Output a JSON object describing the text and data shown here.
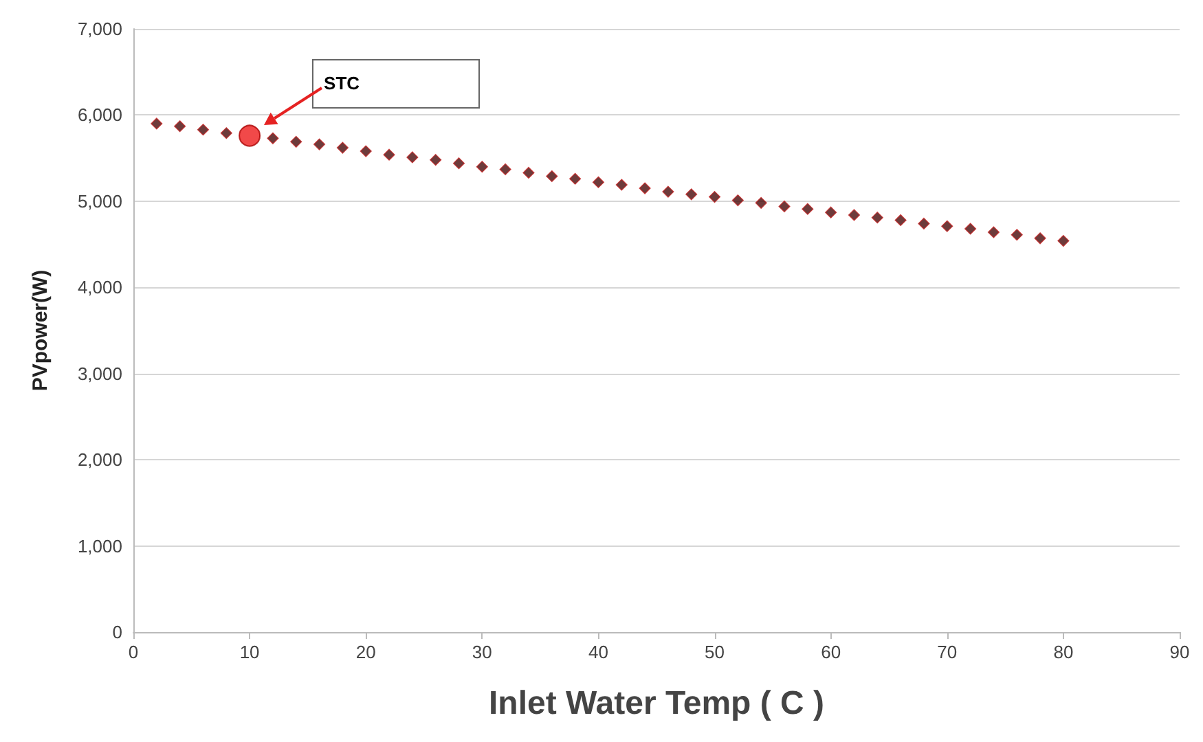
{
  "chart_data": {
    "type": "scatter",
    "xlabel": "Inlet Water Temp ( C )",
    "ylabel": "PVpower(W)",
    "xlim": [
      0,
      90
    ],
    "xticks": [
      0,
      10,
      20,
      30,
      40,
      50,
      60,
      70,
      80,
      90
    ],
    "ylim": [
      0,
      7000
    ],
    "yticks": [
      {
        "value": 0,
        "label": "0"
      },
      {
        "value": 1000,
        "label": "1,000"
      },
      {
        "value": 2000,
        "label": "2,000"
      },
      {
        "value": 3000,
        "label": "3,000"
      },
      {
        "value": 4000,
        "label": "4,000"
      },
      {
        "value": 5000,
        "label": "5,000"
      },
      {
        "value": 6000,
        "label": "6,000"
      },
      {
        "value": 7000,
        "label": "7,000"
      }
    ],
    "grid": "y",
    "marker": "diamond",
    "annotations": [
      "STC"
    ],
    "series": [
      {
        "color": "#4a0a0a",
        "x": [
          2,
          4,
          6,
          8,
          12,
          14,
          16,
          18,
          20,
          22,
          24,
          26,
          28,
          30,
          32,
          34,
          36,
          38,
          40,
          42,
          44,
          46,
          48,
          50,
          52,
          54,
          56,
          58,
          60,
          62,
          64,
          66,
          68,
          70,
          72,
          74,
          76,
          78,
          80
        ],
        "values": [
          5900,
          5870,
          5830,
          5790,
          5730,
          5690,
          5660,
          5620,
          5580,
          5540,
          5510,
          5480,
          5440,
          5400,
          5370,
          5330,
          5290,
          5260,
          5220,
          5190,
          5150,
          5110,
          5080,
          5050,
          5010,
          4980,
          4940,
          4910,
          4870,
          4840,
          4810,
          4780,
          4740,
          4710,
          4680,
          4640,
          4610,
          4570,
          4540
        ]
      },
      {
        "color": "#ee1c1c",
        "marker": "circle",
        "x": [
          10
        ],
        "values": [
          5760
        ]
      }
    ]
  }
}
